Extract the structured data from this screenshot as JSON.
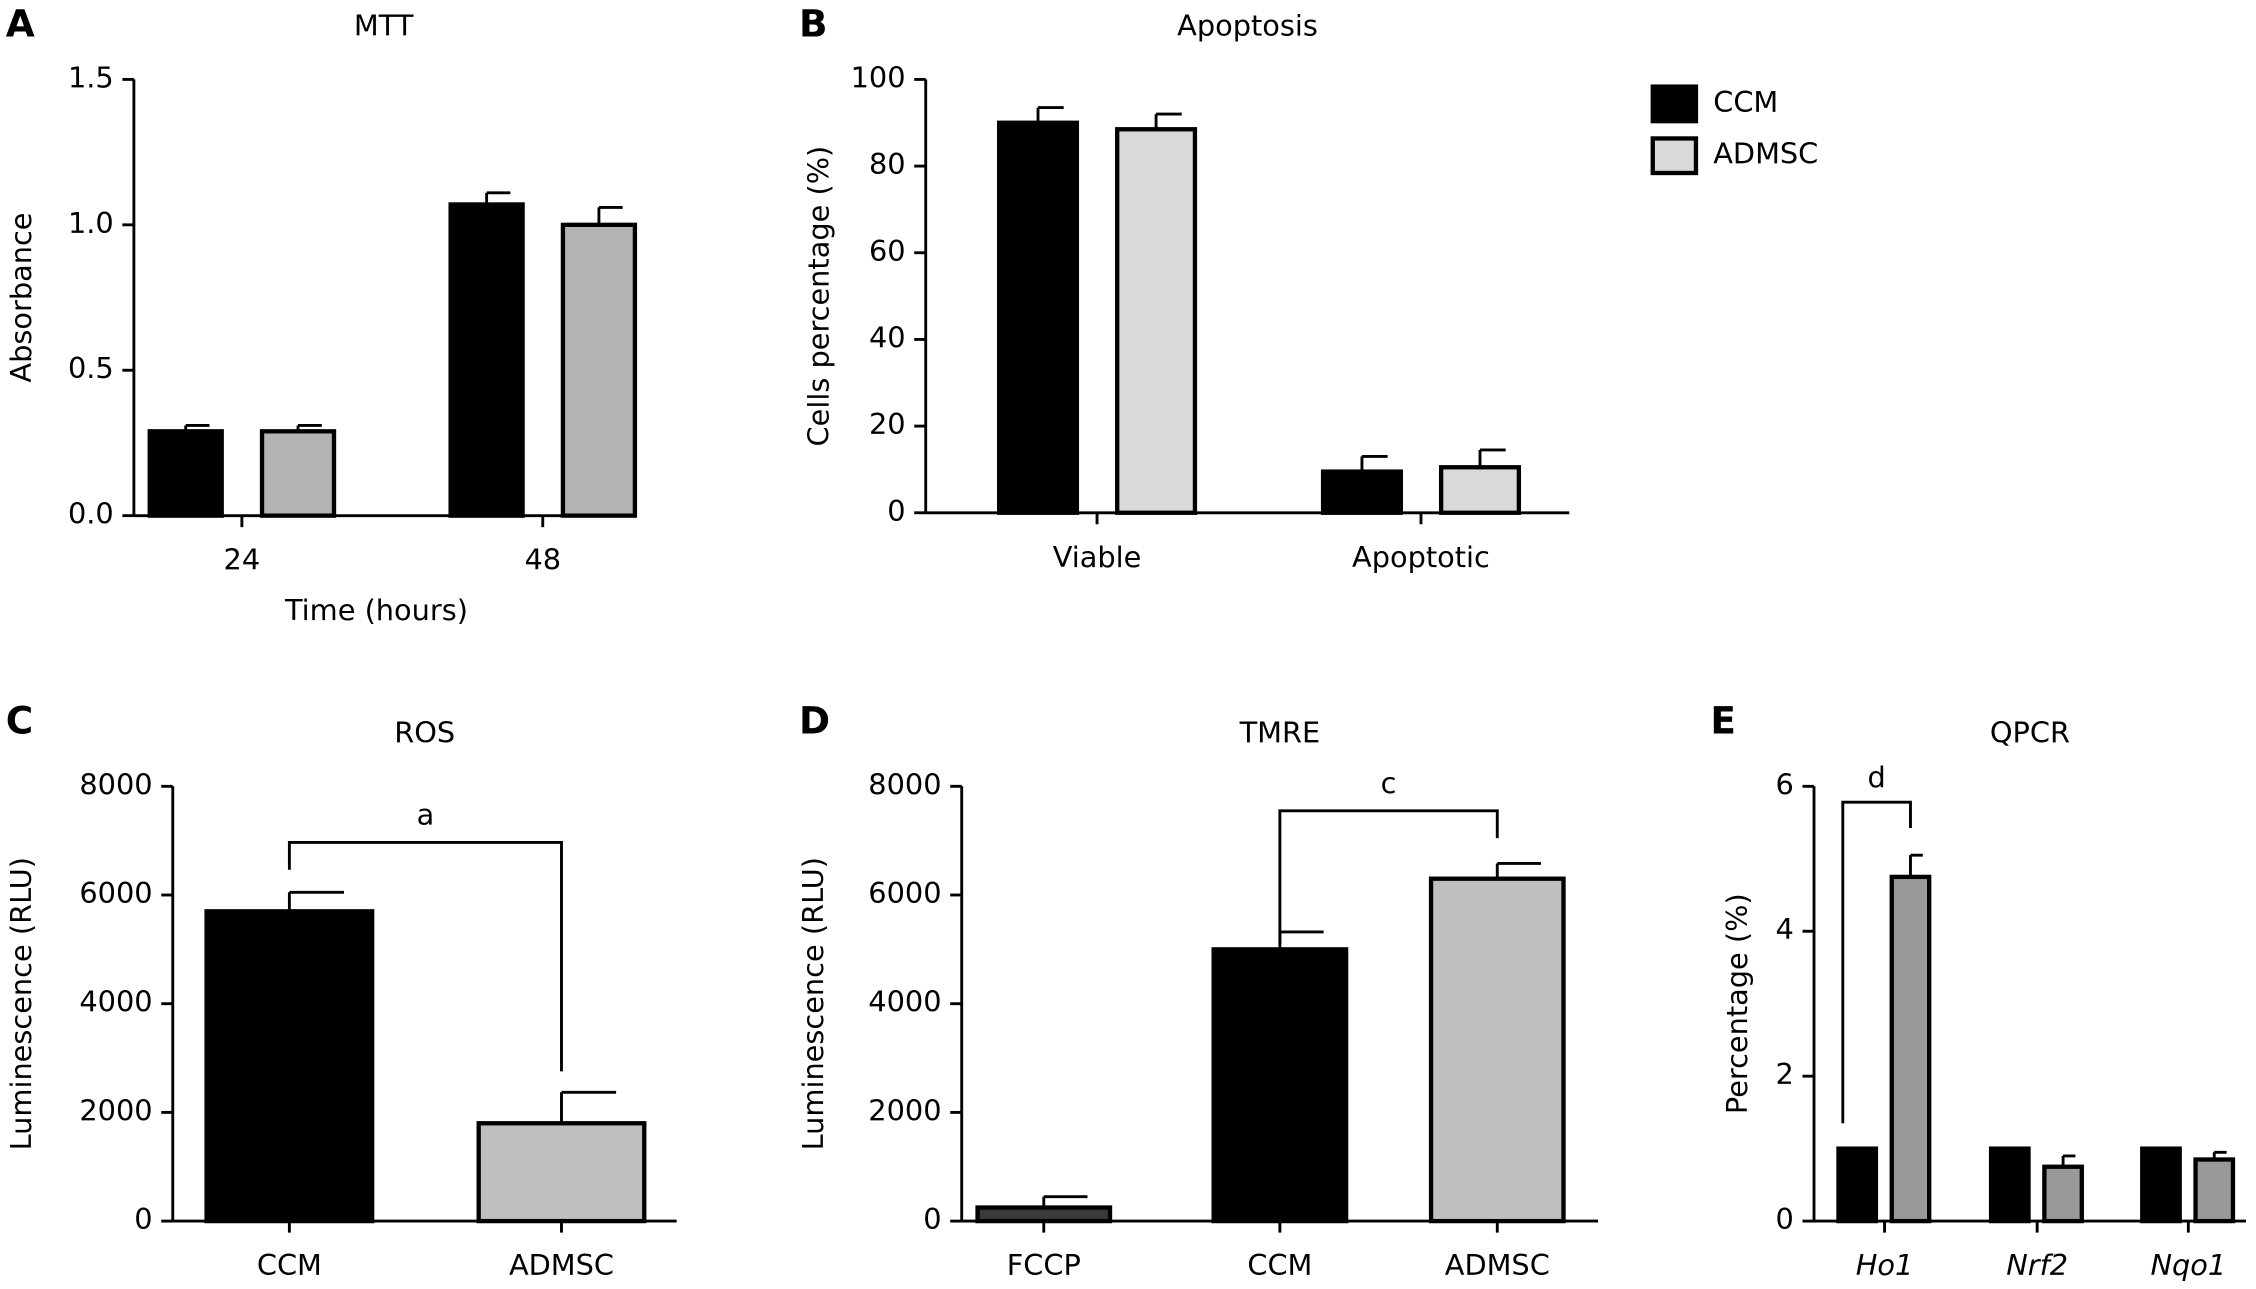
{
  "chart_data": [
    {
      "type": "bar",
      "label": "A",
      "title": "MTT",
      "ylabel": "Absorbance",
      "xlabel": "Time (hours)",
      "categories": [
        "24",
        "48"
      ],
      "series": [
        {
          "color": "#000000",
          "values": [
            0.29,
            1.07
          ],
          "errors": [
            0.02,
            0.04
          ]
        },
        {
          "color": "#b3b3b3",
          "values": [
            0.29,
            1.0
          ],
          "errors": [
            0.02,
            0.06
          ]
        }
      ],
      "ylim": [
        0,
        1.5
      ],
      "yticks": [
        {
          "value": 0,
          "label": "0.0"
        },
        0.5,
        {
          "value": 1,
          "label": "1.0"
        },
        1.5
      ]
    },
    {
      "type": "bar",
      "label": "B",
      "title": "Apoptosis",
      "ylabel": "Cells percentage (%)",
      "categories": [
        "Viable",
        "Apoptotic"
      ],
      "series": [
        {
          "name": "CCM",
          "color": "#000000",
          "values": [
            90,
            9.5
          ],
          "errors": [
            3.5,
            3.5
          ]
        },
        {
          "name": "ADMSC",
          "color": "#d9d9d9",
          "values": [
            88.5,
            10.5
          ],
          "errors": [
            3.5,
            4
          ]
        }
      ],
      "ylim": [
        0,
        100
      ],
      "yticks": [
        0,
        20,
        40,
        60,
        80,
        100
      ],
      "legend": "top-right"
    },
    {
      "type": "bar",
      "label": "C",
      "title": "ROS",
      "ylabel": "Luminescence (RLU)",
      "categories": [
        "CCM",
        "ADMSC"
      ],
      "series": [
        {
          "colors": [
            "#000000",
            "#bfbfbf"
          ],
          "values": [
            5700,
            1800
          ],
          "errors": [
            350,
            570
          ]
        }
      ],
      "ylim": [
        0,
        8000
      ],
      "yticks": [
        0,
        2000,
        4000,
        6000,
        8000
      ],
      "annotation": "a"
    },
    {
      "type": "bar",
      "label": "D",
      "title": "TMRE",
      "ylabel": "Luminescence (RLU)",
      "categories": [
        "FCCP",
        "CCM",
        "ADMSC"
      ],
      "series": [
        {
          "colors": [
            "#3a3a3a",
            "#000000",
            "#bfbfbf"
          ],
          "values": [
            250,
            5000,
            6300
          ],
          "errors": [
            200,
            320,
            280
          ]
        }
      ],
      "ylim": [
        0,
        8000
      ],
      "yticks": [
        0,
        2000,
        4000,
        6000,
        8000
      ],
      "annotation": "c"
    },
    {
      "type": "bar",
      "label": "E",
      "title": "QPCR",
      "ylabel": "Percentage (%)",
      "categories": [
        "Ho1",
        "Nrf2",
        "Nqo1"
      ],
      "series": [
        {
          "color": "#000000",
          "values": [
            1,
            1,
            1
          ],
          "errors": [
            0,
            0,
            0
          ]
        },
        {
          "color": "#999999",
          "values": [
            4.75,
            0.75,
            0.85
          ],
          "errors": [
            0.3,
            0.15,
            0.1
          ]
        }
      ],
      "ylim": [
        0,
        6
      ],
      "yticks": [
        0,
        2,
        4,
        6
      ],
      "annotation": "d"
    }
  ]
}
